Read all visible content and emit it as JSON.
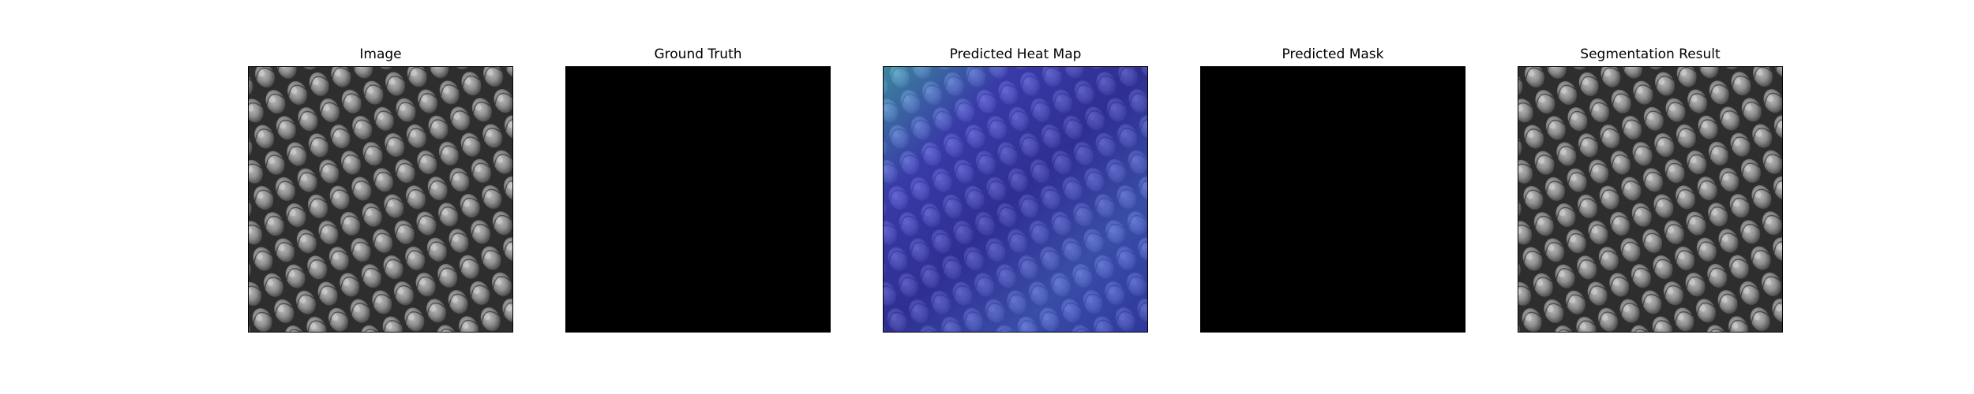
{
  "panels": [
    {
      "title": "Image",
      "kind": "texture-gray"
    },
    {
      "title": "Ground Truth",
      "kind": "mask-black"
    },
    {
      "title": "Predicted Heat Map",
      "kind": "texture-heatmap"
    },
    {
      "title": "Predicted Mask",
      "kind": "mask-black"
    },
    {
      "title": "Segmentation Result",
      "kind": "texture-gray"
    }
  ],
  "colors": {
    "mask": "#000000",
    "heatmap_tint": "#3d3fd6",
    "heatmap_highlight": "#40a8c8"
  }
}
